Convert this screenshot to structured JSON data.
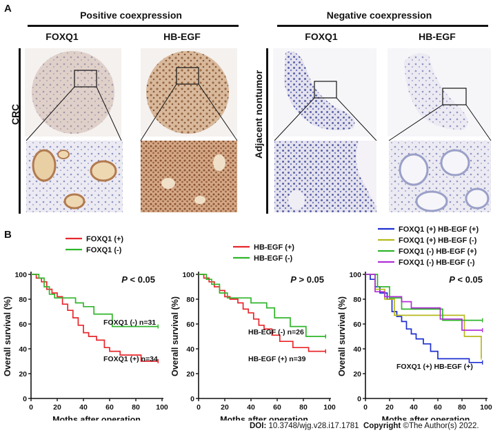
{
  "panel_a": {
    "letter": "A",
    "positive_header": "Positive coexpression",
    "negative_header": "Negative coexpression",
    "col_labels": [
      "FOXQ1",
      "HB-EGF",
      "FOXQ1",
      "HB-EGF"
    ],
    "row_label_left": "CRC",
    "row_label_right": "Adjacent nontumor",
    "colors": {
      "brown_stain": "#b98a5e",
      "blue_stain": "#7d86bd",
      "tissue_bg": "#efe7e3"
    }
  },
  "panel_b": {
    "letter": "B"
  },
  "chart_data": [
    {
      "type": "line",
      "step": true,
      "title": "",
      "xlabel": "Moths after operation",
      "ylabel": "Overall survival (%)",
      "xlim": [
        0,
        100
      ],
      "ylim": [
        0,
        100
      ],
      "xticks": [
        0,
        20,
        40,
        60,
        80,
        100
      ],
      "yticks": [
        0,
        20,
        40,
        60,
        80,
        100
      ],
      "pvalue": "P < 0.05",
      "legend": "top-left",
      "series": [
        {
          "name": "FOXQ1 (+)",
          "color": "#e8262b",
          "x": [
            0,
            4,
            8,
            12,
            16,
            20,
            24,
            28,
            32,
            36,
            40,
            44,
            50,
            56,
            60,
            68,
            84,
            97
          ],
          "y": [
            100,
            97,
            94,
            88,
            85,
            82,
            76,
            71,
            65,
            59,
            53,
            50,
            47,
            41,
            38,
            35,
            30,
            30
          ]
        },
        {
          "name": "FOXQ1 (-)",
          "color": "#2fb52a",
          "x": [
            0,
            6,
            10,
            14,
            18,
            30,
            34,
            40,
            48,
            62,
            97
          ],
          "y": [
            100,
            97,
            90,
            84,
            81,
            81,
            77,
            74,
            68,
            58,
            58
          ]
        }
      ],
      "annotations": [
        "FOXQ1 (-) n=31",
        "FOXQ1 (+) n=34"
      ]
    },
    {
      "type": "line",
      "step": true,
      "title": "",
      "xlabel": "Moths after operation",
      "ylabel": "Overall survival (%)",
      "xlim": [
        0,
        100
      ],
      "ylim": [
        0,
        100
      ],
      "xticks": [
        0,
        20,
        40,
        60,
        80,
        100
      ],
      "yticks": [
        0,
        20,
        40,
        60,
        80,
        100
      ],
      "pvalue": "P > 0.05",
      "legend": "top-left",
      "series": [
        {
          "name": "HB-EGF (+)",
          "color": "#e8262b",
          "x": [
            0,
            4,
            8,
            12,
            16,
            20,
            24,
            30,
            34,
            38,
            42,
            46,
            50,
            56,
            62,
            72,
            84,
            97
          ],
          "y": [
            100,
            97,
            94,
            90,
            87,
            82,
            80,
            77,
            72,
            69,
            64,
            59,
            56,
            51,
            46,
            41,
            38,
            38
          ]
        },
        {
          "name": "HB-EGF (-)",
          "color": "#2fb52a",
          "x": [
            0,
            6,
            10,
            16,
            22,
            34,
            40,
            52,
            58,
            70,
            82,
            97
          ],
          "y": [
            100,
            96,
            92,
            85,
            81,
            81,
            77,
            73,
            65,
            58,
            50,
            50
          ]
        }
      ],
      "annotations": [
        "HB-EGF (-) n=26",
        "HB-EGF (+) n=39"
      ]
    },
    {
      "type": "line",
      "step": true,
      "title": "",
      "xlabel": "Moths after operation",
      "ylabel": "Overall survival (%)",
      "xlim": [
        0,
        100
      ],
      "ylim": [
        0,
        100
      ],
      "xticks": [
        0,
        20,
        40,
        60,
        80,
        100
      ],
      "yticks": [
        0,
        20,
        40,
        60,
        80,
        100
      ],
      "pvalue": "P < 0.05",
      "legend": "top",
      "series": [
        {
          "name": "FOXQ1 (+) HB-EGF (+)",
          "color": "#1e2fd0",
          "x": [
            0,
            4,
            8,
            12,
            18,
            22,
            26,
            30,
            34,
            38,
            42,
            48,
            54,
            60,
            86,
            97
          ],
          "y": [
            100,
            96,
            90,
            85,
            80,
            70,
            66,
            62,
            56,
            52,
            48,
            44,
            38,
            32,
            29,
            29
          ]
        },
        {
          "name": "FOXQ1 (+) HB-EGF (-)",
          "color": "#b7b81a",
          "x": [
            0,
            8,
            16,
            24,
            50,
            82,
            96
          ],
          "y": [
            100,
            88,
            80,
            67,
            67,
            50,
            33
          ]
        },
        {
          "name": "FOXQ1 (-) HB-EGF (+)",
          "color": "#2fb52a",
          "x": [
            0,
            10,
            20,
            30,
            50,
            64,
            97
          ],
          "y": [
            100,
            90,
            81,
            72,
            72,
            63,
            63
          ]
        },
        {
          "name": "FOXQ1 (-) HB-EGF (-)",
          "color": "#b02fd8",
          "x": [
            0,
            8,
            16,
            30,
            38,
            62,
            80,
            97
          ],
          "y": [
            100,
            86,
            82,
            78,
            73,
            64,
            55,
            55
          ]
        }
      ],
      "annotations": [
        "FOXQ1 (+) HB-EGF (+)"
      ]
    }
  ],
  "footer": {
    "doi_label": "DOI:",
    "doi_value": "10.3748/wjg.v28.i17.1781",
    "copyright_label": "Copyright",
    "copyright_value": "©The Author(s) 2022."
  }
}
